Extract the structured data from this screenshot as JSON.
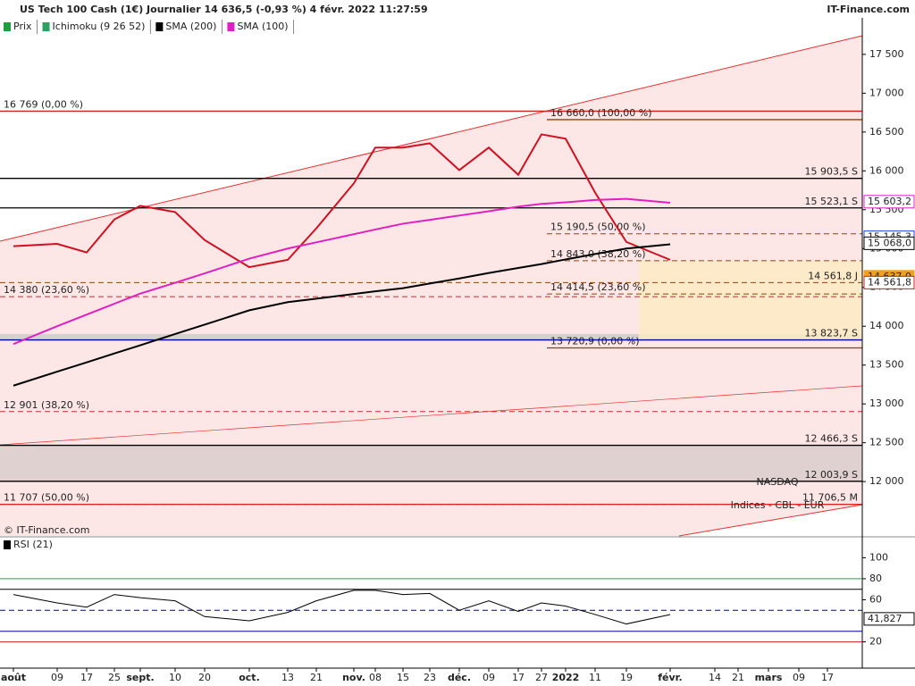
{
  "header": {
    "title": "US Tech 100 Cash (1€) Journalier 14 636,5 (-0,93 %) 4 févr. 2022 11:27:59",
    "brand": "IT-Finance.com",
    "copyright": "© IT-Finance.com"
  },
  "watermark": [
    "NASDAQ",
    "Indices - CBL - EUR"
  ],
  "chart_data": [
    {
      "type": "line",
      "legend": [
        "Prix",
        "Ichimoku (9 26 52)",
        "SMA (200)",
        "SMA (100)"
      ],
      "categories": [
        "août",
        "09",
        "17",
        "25",
        "sept.",
        "10",
        "20",
        "oct.",
        "13",
        "21",
        "nov.",
        "08",
        "15",
        "23",
        "déc.",
        "09",
        "17",
        "27",
        "2022",
        "11",
        "19",
        "févr.",
        "14",
        "21",
        "mars",
        "09",
        "17"
      ],
      "series": [
        {
          "name": "Prix",
          "color": "#d01020",
          "values": [
            15030,
            15060,
            14950,
            15375,
            15550,
            15470,
            15110,
            14760,
            14855,
            15260,
            15840,
            16300,
            16300,
            16355,
            16010,
            16300,
            15950,
            16470,
            16415,
            15720,
            15085,
            14855,
            null,
            null,
            null,
            null,
            null
          ]
        },
        {
          "name": "SMA (200)",
          "color": "#000000",
          "values": [
            13235,
            13415,
            13535,
            13650,
            13755,
            13900,
            14020,
            14205,
            14310,
            14355,
            14415,
            14450,
            14490,
            14550,
            14615,
            14685,
            14750,
            14800,
            14860,
            14930,
            15000,
            15055,
            null,
            null,
            null,
            null,
            null
          ]
        },
        {
          "name": "SMA (100)",
          "color": "#e020c0",
          "values": [
            13770,
            14000,
            14150,
            14290,
            14420,
            14560,
            14680,
            14870,
            15000,
            15080,
            15185,
            15245,
            15320,
            15370,
            15425,
            15480,
            15540,
            15575,
            15595,
            15625,
            15640,
            15590,
            null,
            null,
            null,
            null,
            null
          ]
        }
      ],
      "ylim": [
        11300,
        17970
      ],
      "yticks": [
        {
          "value": 12000,
          "label": "12 000"
        },
        {
          "value": 12500,
          "label": "12 500"
        },
        {
          "value": 13000,
          "label": "13 000"
        },
        {
          "value": 13500,
          "label": "13 500"
        },
        {
          "value": 14000,
          "label": "14 000"
        },
        {
          "value": 14500,
          "label": "14 500"
        },
        {
          "value": 15000,
          "label": "15 000"
        },
        {
          "value": 15500,
          "label": "15 500"
        },
        {
          "value": 16000,
          "label": "16 000"
        },
        {
          "value": 16500,
          "label": "16 500"
        },
        {
          "value": 17000,
          "label": "17 000"
        },
        {
          "value": 17500,
          "label": "17 500"
        }
      ],
      "levels": [
        {
          "label": "16 769 (0,00 %)",
          "value": 16769,
          "color": "#d02020",
          "side": "left",
          "dashed": false
        },
        {
          "label": "14 380 (23,60 %)",
          "value": 14380,
          "color": "#c03030",
          "side": "left",
          "dashed": true
        },
        {
          "label": "12 901 (38,20 %)",
          "value": 12901,
          "color": "#c03030",
          "side": "left",
          "dashed": true
        },
        {
          "label": "11 707 (50,00 %)",
          "value": 11707,
          "color": "#e02020",
          "side": "left",
          "dashed": true
        },
        {
          "label": "16 660,0 (100,00 %)",
          "value": 16660,
          "color": "#8b4513",
          "side": "fib",
          "dashed": false
        },
        {
          "label": "15 190,5 (50,00 %)",
          "value": 15190.5,
          "color": "#8b4513",
          "side": "fib",
          "dashed": true
        },
        {
          "label": "14 843,0 (38,20 %)",
          "value": 14843,
          "color": "#8b4513",
          "side": "fib",
          "dashed": true
        },
        {
          "label": "14 414,5 (23,60 %)",
          "value": 14414.5,
          "color": "#8b4513",
          "side": "fib",
          "dashed": true
        },
        {
          "label": "13 720,9 (0,00 %)",
          "value": 13720.9,
          "color": "#8b4513",
          "side": "fib",
          "dashed": false
        },
        {
          "label": "15 903,5 S",
          "value": 15903.5,
          "color": "#000000",
          "side": "right",
          "dashed": false
        },
        {
          "label": "15 523,1 S",
          "value": 15523.1,
          "color": "#000000",
          "side": "right",
          "dashed": false
        },
        {
          "label": "14 561,8 J",
          "value": 14561.8,
          "color": "#8b4513",
          "side": "right",
          "dashed": true
        },
        {
          "label": "13 823,7 S",
          "value": 13823.7,
          "color": "#0000a0",
          "side": "right",
          "dashed": false
        },
        {
          "label": "12 466,3 S",
          "value": 12466.3,
          "color": "#000000",
          "side": "right",
          "dashed": false
        },
        {
          "label": "12 003,9 S",
          "value": 12003.9,
          "color": "#000000",
          "side": "right",
          "dashed": false
        },
        {
          "label": "11 706,5 M",
          "value": 11706.5,
          "color": "#e02020",
          "side": "right",
          "dashed": false
        }
      ],
      "price_tags": [
        {
          "label": "15 603,2",
          "value": 15603.2,
          "color": "#e020c0"
        },
        {
          "label": "15 145,3",
          "value": 15145.3,
          "color": "#2040e0"
        },
        {
          "label": "15 068,0",
          "value": 15068,
          "color": "#000000"
        },
        {
          "label": "14 637,0",
          "value": 14637,
          "color": "#f0a020"
        },
        {
          "label": "14 561,8",
          "value": 14561.8,
          "color": "#d02020"
        }
      ]
    },
    {
      "type": "rsi",
      "title": "RSI (21)",
      "color": "#000000",
      "values": [
        65,
        57,
        53,
        65,
        62,
        59,
        44,
        40,
        48,
        59,
        69,
        69,
        65,
        66,
        50,
        59,
        49,
        57,
        54,
        46,
        37,
        46,
        null,
        null,
        null,
        null,
        null
      ],
      "ylim": [
        -5,
        119
      ],
      "yticks": [
        20,
        60,
        80,
        100
      ],
      "levels": [
        70,
        50,
        30
      ],
      "value_tag": {
        "label": "41,827",
        "value": 41.827
      }
    }
  ]
}
